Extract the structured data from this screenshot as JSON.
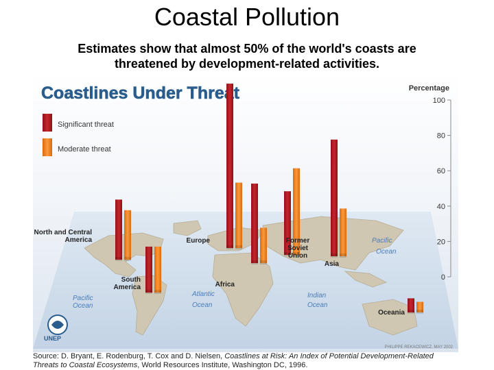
{
  "slide": {
    "title": "Coastal Pollution",
    "subtitle_line1": "Estimates show that almost 50% of the world's coasts are",
    "subtitle_line2": "threatened by development-related activities."
  },
  "figure": {
    "credit": "PHILIPPE REKACEWICZ, MAY 2002",
    "unep_label": "UNEP",
    "ocean_labels": {
      "pacific_left": [
        "Pacific",
        "Ocean"
      ],
      "atlantic": [
        "Atlantic",
        "Ocean"
      ],
      "indian": [
        "Indian",
        "Ocean"
      ],
      "pacific_right": [
        "Pacific",
        "Ocean"
      ]
    }
  },
  "source": {
    "prefix": "Source: D. Bryant, E. Rodenburg, T. Cox and D. Nielsen, ",
    "title_italic_1": "Coastlines at Risk: An Index of Potential Development-Related",
    "title_italic_2": "Threats to Coastal Ecosystems",
    "suffix": ", World Resources Institute, Washington DC, 1996."
  },
  "chart_data": {
    "type": "bar",
    "title": "Coastlines Under Threat",
    "ylabel": "Percentage",
    "ylim": [
      0,
      100
    ],
    "yticks": [
      0,
      20,
      40,
      60,
      80,
      100
    ],
    "legend_position": "top-left",
    "categories": [
      "North and Central America",
      "South America",
      "Europe",
      "Africa",
      "Former Soviet Union",
      "Asia",
      "Oceania"
    ],
    "series": [
      {
        "name": "Significant threat",
        "color": "#b01c22",
        "values": [
          34,
          26,
          93,
          45,
          36,
          66,
          8
        ]
      },
      {
        "name": "Moderate threat",
        "color": "#f07f1c",
        "values": [
          28,
          26,
          37,
          20,
          49,
          27,
          6
        ]
      }
    ]
  }
}
